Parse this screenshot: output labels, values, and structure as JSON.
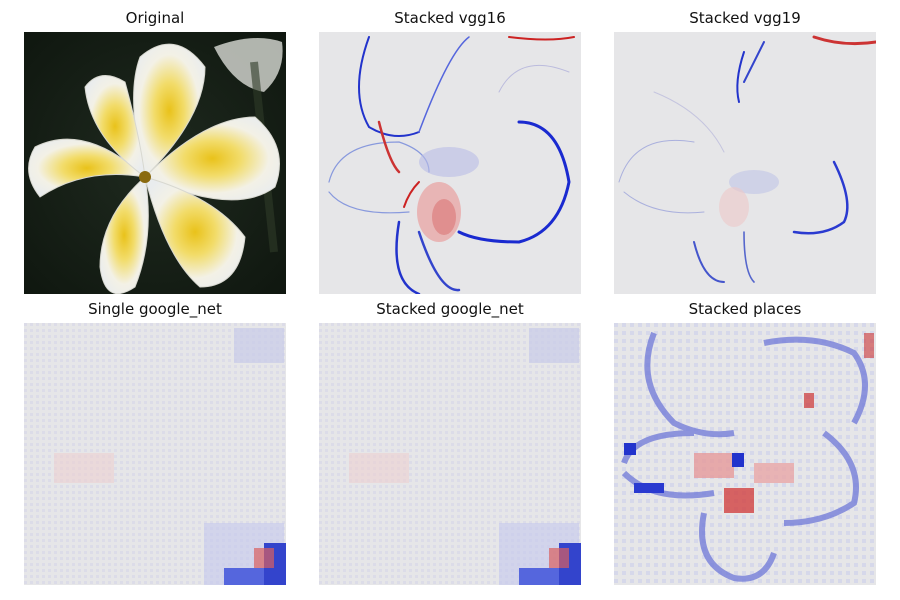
{
  "panels": [
    {
      "title": "Original"
    },
    {
      "title": "Stacked vgg16"
    },
    {
      "title": "Stacked vgg19"
    },
    {
      "title": "Single google_net"
    },
    {
      "title": "Stacked google_net"
    },
    {
      "title": "Stacked places"
    }
  ]
}
